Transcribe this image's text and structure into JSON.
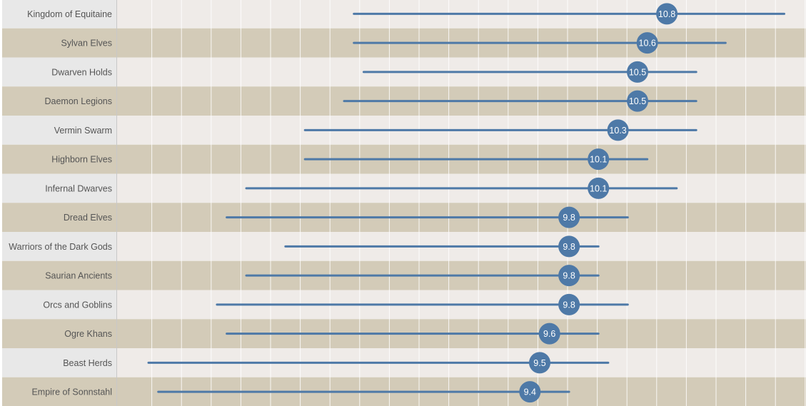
{
  "chart_data": {
    "type": "dot-range",
    "title": "",
    "xlabel": "",
    "ylabel": "",
    "grid": true,
    "colors": {
      "mark": "#4e79a7",
      "band_light": "#efebe8",
      "band_dark": "#d3cbb8",
      "label_panel": "#e8e8e8",
      "gridline": "#ffffff"
    },
    "rows": [
      {
        "name": "Kingdom of Equitaine",
        "min": 7.6,
        "max": 12.0,
        "mean": 10.8,
        "label": "10.8"
      },
      {
        "name": "Sylvan Elves",
        "min": 7.6,
        "max": 11.4,
        "mean": 10.6,
        "label": "10.6"
      },
      {
        "name": "Dwarven Holds",
        "min": 7.7,
        "max": 11.1,
        "mean": 10.5,
        "label": "10.5"
      },
      {
        "name": "Daemon Legions",
        "min": 7.5,
        "max": 11.1,
        "mean": 10.5,
        "label": "10.5"
      },
      {
        "name": "Vermin Swarm",
        "min": 7.1,
        "max": 11.1,
        "mean": 10.3,
        "label": "10.3"
      },
      {
        "name": "Highborn Elves",
        "min": 7.1,
        "max": 10.6,
        "mean": 10.1,
        "label": "10.1"
      },
      {
        "name": "Infernal Dwarves",
        "min": 6.5,
        "max": 10.9,
        "mean": 10.1,
        "label": "10.1"
      },
      {
        "name": "Dread Elves",
        "min": 6.3,
        "max": 10.4,
        "mean": 9.8,
        "label": "9.8"
      },
      {
        "name": "Warriors of the Dark Gods",
        "min": 6.9,
        "max": 10.1,
        "mean": 9.8,
        "label": "9.8"
      },
      {
        "name": "Saurian Ancients",
        "min": 6.5,
        "max": 10.1,
        "mean": 9.8,
        "label": "9.8"
      },
      {
        "name": "Orcs and Goblins",
        "min": 6.2,
        "max": 10.4,
        "mean": 9.8,
        "label": "9.8"
      },
      {
        "name": "Ogre Khans",
        "min": 6.3,
        "max": 10.1,
        "mean": 9.6,
        "label": "9.6"
      },
      {
        "name": "Beast Herds",
        "min": 5.5,
        "max": 10.2,
        "mean": 9.5,
        "label": "9.5"
      },
      {
        "name": "Empire of Sonnstahl",
        "min": 5.6,
        "max": 9.8,
        "mean": 9.4,
        "label": "9.4"
      }
    ]
  }
}
